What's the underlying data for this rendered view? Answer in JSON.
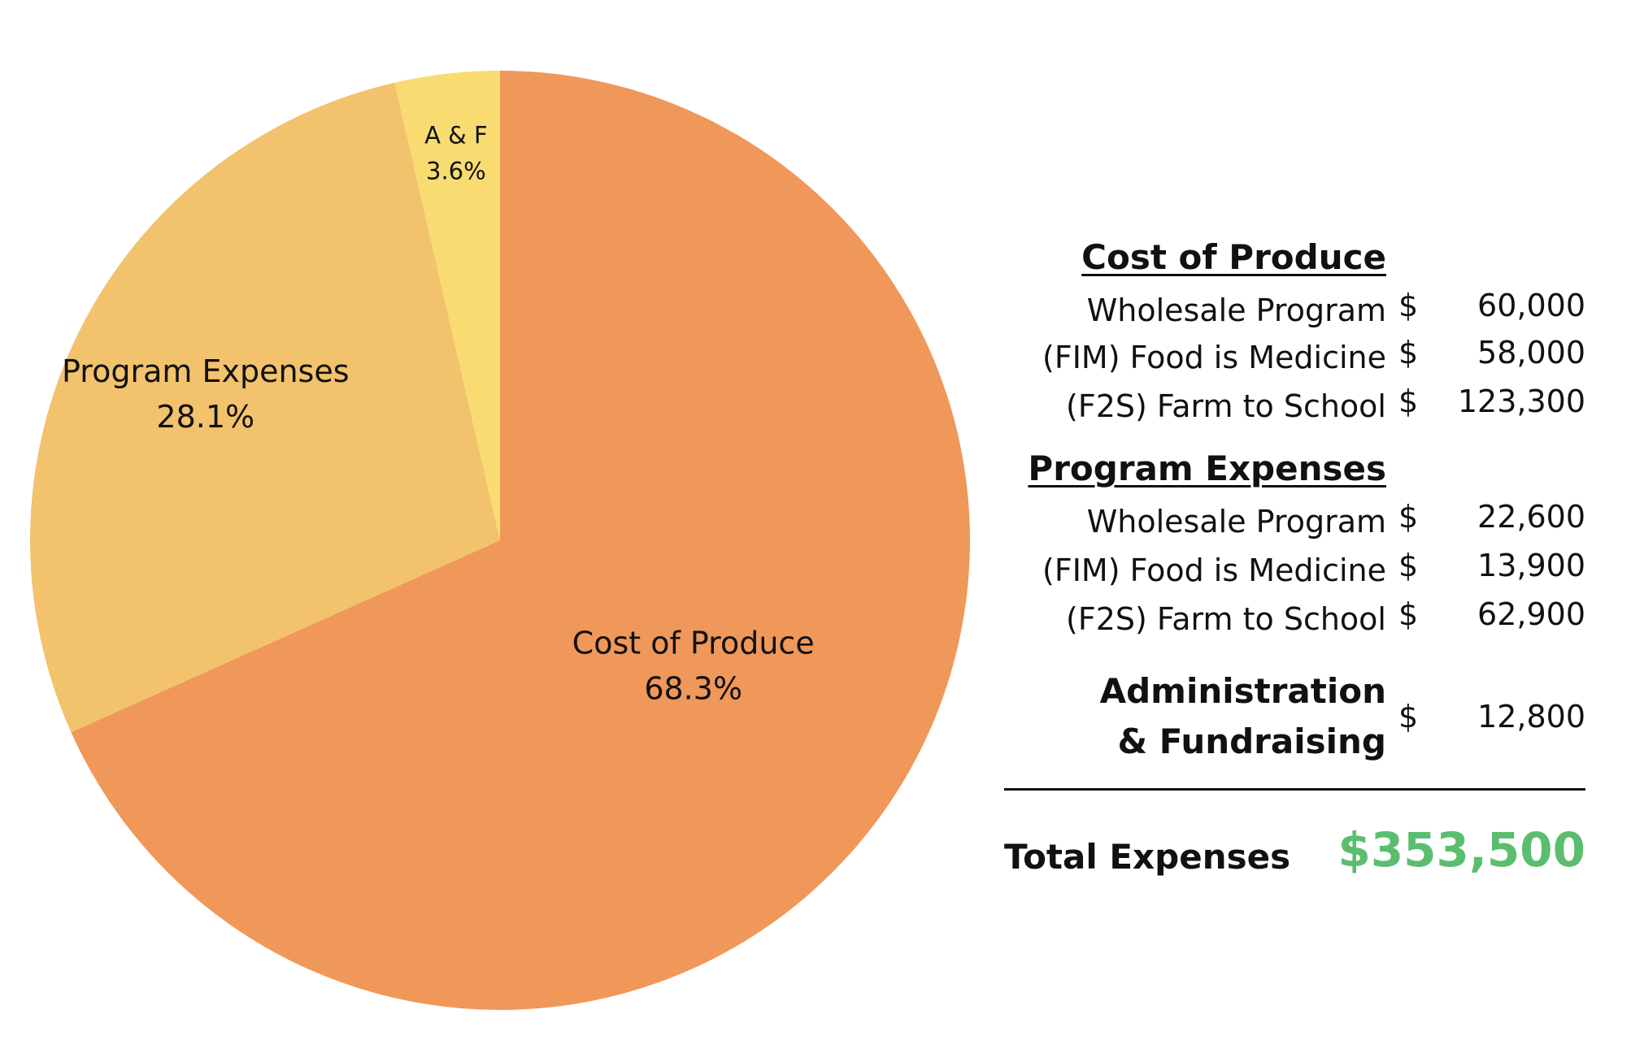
{
  "chart_data": {
    "type": "pie",
    "title": "",
    "slices": [
      {
        "label": "Cost of Produce",
        "percent_label": "68.3%",
        "value": 68.3,
        "color": "#F0975A"
      },
      {
        "label": "Program Expenses",
        "percent_label": "28.1%",
        "value": 28.1,
        "color": "#F2C26C"
      },
      {
        "label": "A & F",
        "percent_label": "3.6%",
        "value": 3.6,
        "color": "#F8DC72"
      }
    ]
  },
  "breakdown": {
    "cost_of_produce": {
      "title": "Cost of Produce",
      "rows": [
        {
          "label": "Wholesale Program",
          "currency": "$",
          "amount": "60,000"
        },
        {
          "label": "(FIM) Food is Medicine",
          "currency": "$",
          "amount": "58,000"
        },
        {
          "label": "(F2S) Farm to School",
          "currency": "$",
          "amount": "123,300"
        }
      ]
    },
    "program_expenses": {
      "title": "Program Expenses",
      "rows": [
        {
          "label": "Wholesale Program",
          "currency": "$",
          "amount": "22,600"
        },
        {
          "label": "(FIM) Food is Medicine",
          "currency": "$",
          "amount": "13,900"
        },
        {
          "label": "(F2S) Farm to School",
          "currency": "$",
          "amount": "62,900"
        }
      ]
    },
    "admin": {
      "label_line1": "Administration",
      "label_line2": "& Fundraising",
      "currency": "$",
      "amount": "12,800"
    },
    "total": {
      "label": "Total Expenses",
      "value": "$353,500",
      "color": "#5BBE6E"
    }
  }
}
